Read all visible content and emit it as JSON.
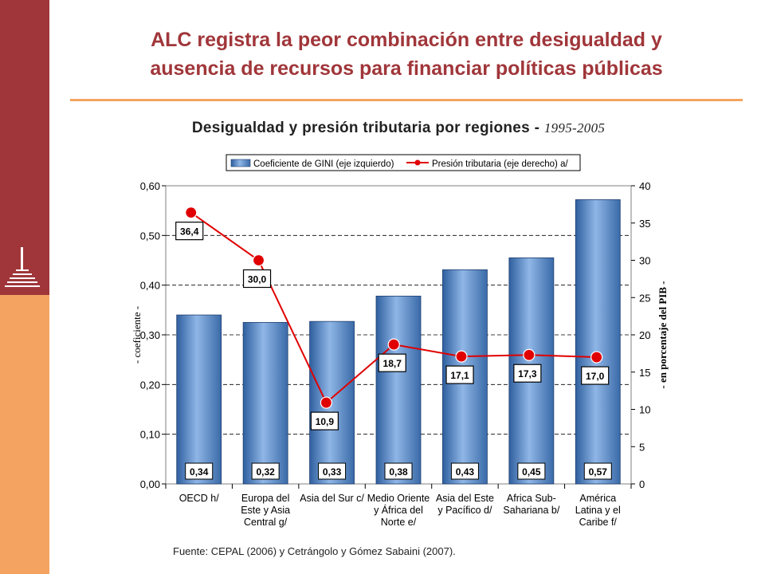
{
  "slide": {
    "title_line1": "ALC registra la peor combinación entre desigualdad y",
    "title_line2": "ausencia de recursos para financiar políticas públicas",
    "source": "Fuente: CEPAL (2006) y Cetrángolo y Gómez Sabaini (2007)."
  },
  "colors": {
    "sidebar_top": "#a0363a",
    "sidebar_bottom": "#f4a460",
    "title": "#a0363a",
    "bar": "#5b8fd0",
    "line": "#e00000"
  },
  "chart_data": {
    "type": "bar",
    "title": "Desigualdad y presión tributaria por regiones -",
    "title_years": "1995-2005",
    "categories": [
      [
        "OECD h/"
      ],
      [
        "Europa del",
        "Este y Asia",
        "Central g/"
      ],
      [
        "Asia del Sur c/"
      ],
      [
        "Medio Oriente",
        "y África del",
        "Norte e/"
      ],
      [
        "Asia del Este",
        "y Pacífico d/"
      ],
      [
        "Africa Sub-",
        "Sahariana b/"
      ],
      [
        "América",
        "Latina y el",
        "Caribe f/"
      ]
    ],
    "series": [
      {
        "name": "Coeficiente de GINI (eje izquierdo)",
        "kind": "bar",
        "axis": "left",
        "values": [
          0.34,
          0.325,
          0.327,
          0.378,
          0.431,
          0.455,
          0.572
        ],
        "labels": [
          "0,34",
          "0,32",
          "0,33",
          "0,38",
          "0,43",
          "0,45",
          "0,57"
        ]
      },
      {
        "name": "Presión tributaria (eje derecho) a/",
        "kind": "line",
        "axis": "right",
        "values": [
          36.4,
          30.0,
          10.9,
          18.7,
          17.1,
          17.3,
          17.0
        ],
        "labels": [
          "36,4",
          "30,0",
          "10,9",
          "18,7",
          "17,1",
          "17,3",
          "17,0"
        ]
      }
    ],
    "ylabel_left": "- coeficiente -",
    "ylabel_right": "- en porcentaje del PIB -",
    "ylim_left": [
      0,
      0.6
    ],
    "ylim_right": [
      0,
      40
    ],
    "yticks_left": [
      "0,00",
      "0,10",
      "0,20",
      "0,30",
      "0,40",
      "0,50",
      "0,60"
    ],
    "yticks_right": [
      "0",
      "5",
      "10",
      "15",
      "20",
      "25",
      "30",
      "35",
      "40"
    ],
    "grid": true,
    "legend_position": "top"
  }
}
